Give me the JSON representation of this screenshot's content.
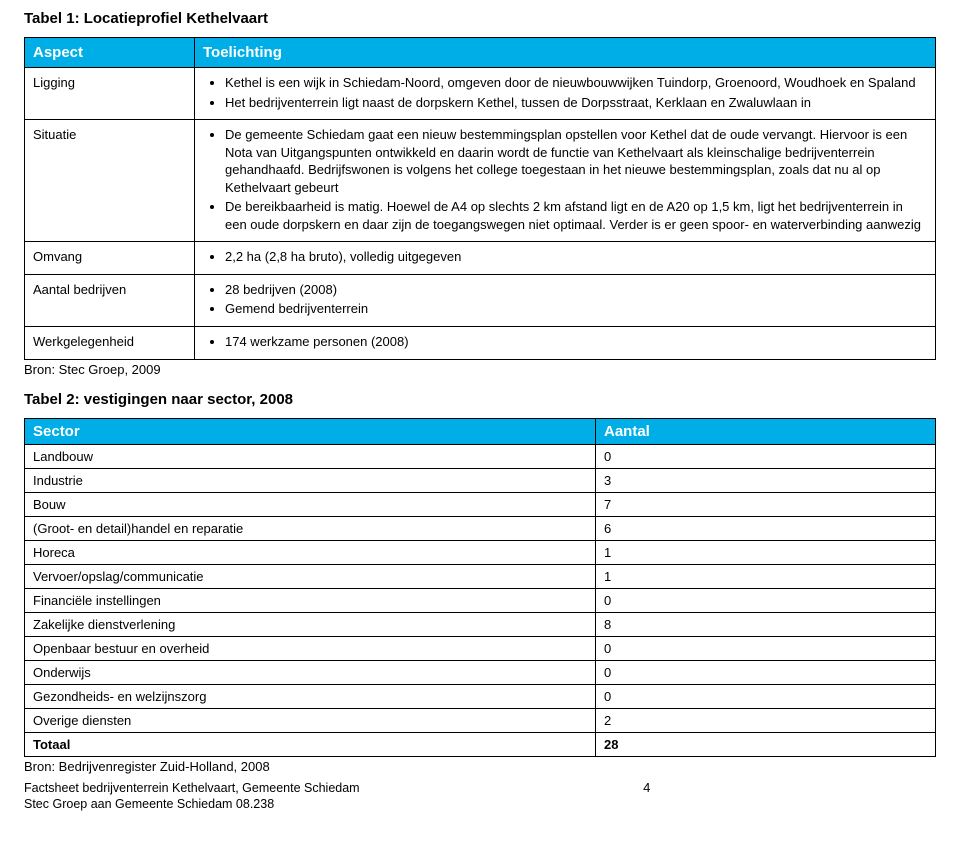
{
  "table1": {
    "title": "Tabel 1: Locatieprofiel Kethelvaart",
    "header_col1": "Aspect",
    "header_col2": "Toelichting",
    "header_bg": "#00aee7",
    "header_fg": "#ffffff",
    "border_color": "#000000",
    "font_family": "Arial",
    "rows": {
      "ligging": {
        "aspect": "Ligging",
        "bullets": [
          "Kethel is een wijk in Schiedam-Noord, omgeven door de nieuwbouwwijken Tuindorp, Groenoord, Woudhoek en Spaland",
          "Het bedrijventerrein ligt naast de dorpskern Kethel, tussen de Dorpsstraat, Kerklaan en Zwaluwlaan in"
        ]
      },
      "situatie": {
        "aspect": "Situatie",
        "bullets": [
          "De gemeente Schiedam gaat een nieuw bestemmingsplan opstellen voor Kethel dat de oude vervangt. Hiervoor is een Nota van Uitgangspunten ontwikkeld en daarin wordt de functie van Kethelvaart als kleinschalige bedrijventerrein gehandhaafd. Bedrijfswonen is volgens het college toegestaan in het nieuwe bestemmingsplan, zoals dat nu al op Kethelvaart gebeurt",
          "De bereikbaarheid is matig. Hoewel de A4 op slechts 2 km afstand ligt en de A20 op 1,5 km, ligt het bedrijventerrein in een oude dorpskern en daar zijn de toegangswegen niet optimaal. Verder is er geen spoor- en waterverbinding aanwezig"
        ]
      },
      "omvang": {
        "aspect": "Omvang",
        "bullets": [
          "2,2 ha (2,8 ha bruto), volledig uitgegeven"
        ]
      },
      "aantal_bedrijven": {
        "aspect": "Aantal bedrijven",
        "bullets": [
          "28 bedrijven (2008)",
          "Gemend bedrijventerrein"
        ]
      },
      "werkgelegenheid": {
        "aspect": "Werkgelegenheid",
        "bullets": [
          "174 werkzame personen (2008)"
        ]
      }
    },
    "source": "Bron: Stec Groep, 2009"
  },
  "table2": {
    "title": "Tabel 2: vestigingen naar sector, 2008",
    "header_col1": "Sector",
    "header_col2": "Aantal",
    "header_bg": "#00aee7",
    "header_fg": "#ffffff",
    "rows": [
      {
        "sector": "Landbouw",
        "count": "0"
      },
      {
        "sector": "Industrie",
        "count": "3"
      },
      {
        "sector": "Bouw",
        "count": "7"
      },
      {
        "sector": "(Groot- en detail)handel en reparatie",
        "count": "6"
      },
      {
        "sector": "Horeca",
        "count": "1"
      },
      {
        "sector": "Vervoer/opslag/communicatie",
        "count": "1"
      },
      {
        "sector": "Financiële instellingen",
        "count": "0"
      },
      {
        "sector": "Zakelijke dienstverlening",
        "count": "8"
      },
      {
        "sector": "Openbaar bestuur en overheid",
        "count": "0"
      },
      {
        "sector": "Onderwijs",
        "count": "0"
      },
      {
        "sector": "Gezondheids- en welzijnszorg",
        "count": "0"
      },
      {
        "sector": "Overige diensten",
        "count": "2"
      },
      {
        "sector": "Totaal",
        "count": "28"
      }
    ],
    "source": "Bron: Bedrijvenregister Zuid-Holland, 2008"
  },
  "footer": {
    "line1": "Factsheet bedrijventerrein Kethelvaart, Gemeente Schiedam",
    "line2": "Stec Groep aan Gemeente Schiedam 08.238",
    "page": "4"
  }
}
